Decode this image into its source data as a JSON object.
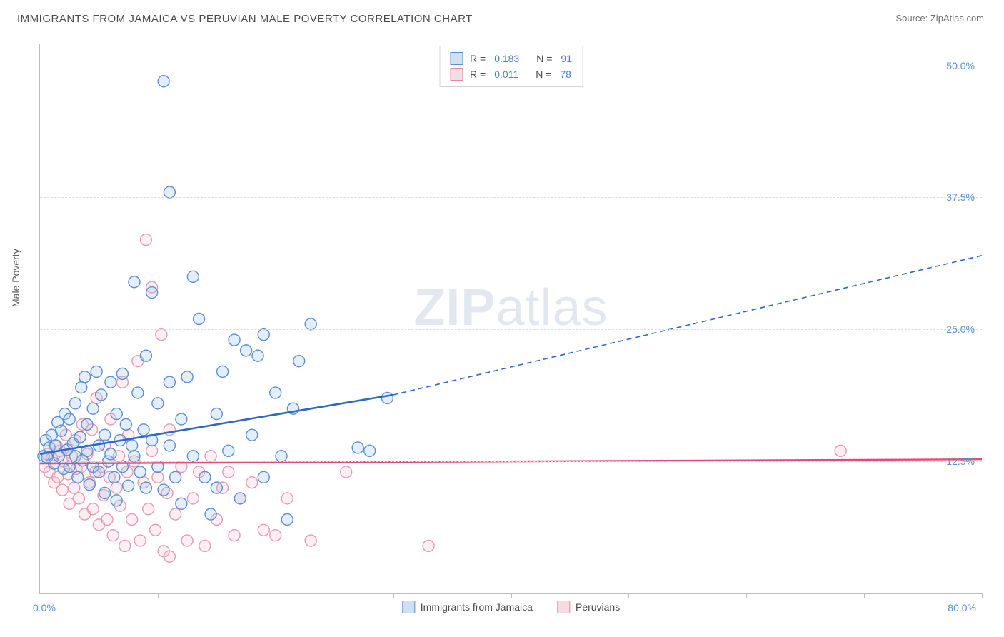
{
  "title": "IMMIGRANTS FROM JAMAICA VS PERUVIAN MALE POVERTY CORRELATION CHART",
  "source": "Source: ZipAtlas.com",
  "ylabel": "Male Poverty",
  "watermark": {
    "bold": "ZIP",
    "rest": "atlas"
  },
  "chart": {
    "type": "scatter",
    "background_color": "#ffffff",
    "grid_color": "#dcdcdc",
    "axis_color": "#bdbdbd",
    "xlim": [
      0,
      80
    ],
    "ylim": [
      0,
      52
    ],
    "xtick_positions": [
      0,
      10,
      20,
      30,
      40,
      50,
      60,
      70,
      80
    ],
    "ytick_labels": [
      {
        "value": 12.5,
        "label": "12.5%"
      },
      {
        "value": 25.0,
        "label": "25.0%"
      },
      {
        "value": 37.5,
        "label": "37.5%"
      },
      {
        "value": 50.0,
        "label": "50.0%"
      }
    ],
    "xaxis_left_label": "0.0%",
    "xaxis_right_label": "80.0%",
    "ytick_color": "#5a8fd6",
    "xtick_color": "#5a8fd6",
    "marker_radius": 8,
    "marker_stroke_width": 1.4,
    "marker_fill_opacity": 0.28
  },
  "series": [
    {
      "id": "jamaica",
      "label": "Immigrants from Jamaica",
      "color_stroke": "#5a8fd6",
      "color_fill": "#9dc1ea",
      "swatch_fill": "#cfe0f4",
      "swatch_border": "#5a8fd6",
      "R": "0.183",
      "N": "91",
      "trend": {
        "solid": {
          "x1": 0,
          "y1": 13.2,
          "x2": 30,
          "y2": 18.8
        },
        "dashed": {
          "x1": 30,
          "y1": 18.8,
          "x2": 80,
          "y2": 32.0
        },
        "line_color": "#2f67c5",
        "line_width_solid": 2.6,
        "line_width_dashed": 1.6,
        "dash": "7 5"
      },
      "points": [
        [
          0.3,
          13.0
        ],
        [
          0.5,
          14.5
        ],
        [
          0.6,
          12.9
        ],
        [
          0.8,
          13.8
        ],
        [
          1.0,
          15.0
        ],
        [
          1.2,
          12.3
        ],
        [
          1.3,
          14.0
        ],
        [
          1.5,
          16.2
        ],
        [
          1.6,
          13.0
        ],
        [
          1.8,
          15.4
        ],
        [
          2.0,
          11.8
        ],
        [
          2.1,
          17.0
        ],
        [
          2.3,
          13.6
        ],
        [
          2.5,
          12.0
        ],
        [
          2.5,
          16.5
        ],
        [
          2.8,
          14.2
        ],
        [
          3.0,
          13.0
        ],
        [
          3.0,
          18.0
        ],
        [
          3.2,
          11.0
        ],
        [
          3.4,
          14.8
        ],
        [
          3.5,
          19.5
        ],
        [
          3.6,
          12.6
        ],
        [
          3.8,
          20.5
        ],
        [
          4.0,
          13.5
        ],
        [
          4.0,
          16.0
        ],
        [
          4.2,
          10.3
        ],
        [
          4.5,
          17.5
        ],
        [
          4.5,
          12.0
        ],
        [
          4.8,
          21.0
        ],
        [
          5.0,
          14.0
        ],
        [
          5.0,
          11.5
        ],
        [
          5.2,
          18.8
        ],
        [
          5.5,
          9.5
        ],
        [
          5.5,
          15.0
        ],
        [
          5.8,
          12.5
        ],
        [
          6.0,
          20.0
        ],
        [
          6.0,
          13.2
        ],
        [
          6.3,
          11.0
        ],
        [
          6.5,
          17.0
        ],
        [
          6.5,
          8.8
        ],
        [
          6.8,
          14.5
        ],
        [
          7.0,
          20.8
        ],
        [
          7.0,
          12.0
        ],
        [
          7.3,
          16.0
        ],
        [
          7.5,
          10.2
        ],
        [
          7.8,
          14.0
        ],
        [
          8.0,
          29.5
        ],
        [
          8.0,
          13.0
        ],
        [
          8.3,
          19.0
        ],
        [
          8.5,
          11.5
        ],
        [
          8.8,
          15.5
        ],
        [
          9.0,
          22.5
        ],
        [
          9.0,
          10.0
        ],
        [
          9.5,
          14.5
        ],
        [
          9.5,
          28.5
        ],
        [
          10.0,
          12.0
        ],
        [
          10.0,
          18.0
        ],
        [
          10.5,
          9.8
        ],
        [
          10.5,
          48.5
        ],
        [
          11.0,
          14.0
        ],
        [
          11.0,
          20.0
        ],
        [
          11.0,
          38.0
        ],
        [
          11.5,
          11.0
        ],
        [
          12.0,
          16.5
        ],
        [
          12.0,
          8.5
        ],
        [
          12.5,
          20.5
        ],
        [
          13.0,
          13.0
        ],
        [
          13.0,
          30.0
        ],
        [
          13.5,
          26.0
        ],
        [
          14.0,
          11.0
        ],
        [
          14.5,
          7.5
        ],
        [
          15.0,
          17.0
        ],
        [
          15.0,
          10.0
        ],
        [
          15.5,
          21.0
        ],
        [
          16.0,
          13.5
        ],
        [
          16.5,
          24.0
        ],
        [
          17.0,
          9.0
        ],
        [
          17.5,
          23.0
        ],
        [
          18.0,
          15.0
        ],
        [
          18.5,
          22.5
        ],
        [
          19.0,
          11.0
        ],
        [
          19.0,
          24.5
        ],
        [
          20.0,
          19.0
        ],
        [
          20.5,
          13.0
        ],
        [
          21.0,
          7.0
        ],
        [
          21.5,
          17.5
        ],
        [
          22.0,
          22.0
        ],
        [
          23.0,
          25.5
        ],
        [
          27.0,
          13.8
        ],
        [
          28.0,
          13.5
        ],
        [
          29.5,
          18.5
        ]
      ]
    },
    {
      "id": "peruvians",
      "label": "Peruvians",
      "color_stroke": "#e69ab0",
      "color_fill": "#f4c3cf",
      "swatch_fill": "#f7dbe2",
      "swatch_border": "#e48aa1",
      "R": "0.011",
      "N": "78",
      "trend": {
        "solid": {
          "x1": 0,
          "y1": 12.3,
          "x2": 80,
          "y2": 12.7
        },
        "dashed": null,
        "line_color": "#e14b74",
        "line_width_solid": 2.4
      },
      "points": [
        [
          0.4,
          12.0
        ],
        [
          0.6,
          13.2
        ],
        [
          0.8,
          11.5
        ],
        [
          1.0,
          12.8
        ],
        [
          1.2,
          10.5
        ],
        [
          1.4,
          14.0
        ],
        [
          1.5,
          11.0
        ],
        [
          1.7,
          13.5
        ],
        [
          1.9,
          9.8
        ],
        [
          2.0,
          12.5
        ],
        [
          2.2,
          15.0
        ],
        [
          2.4,
          11.3
        ],
        [
          2.5,
          8.5
        ],
        [
          2.7,
          13.0
        ],
        [
          2.9,
          10.0
        ],
        [
          3.0,
          14.5
        ],
        [
          3.1,
          11.8
        ],
        [
          3.3,
          9.0
        ],
        [
          3.5,
          12.0
        ],
        [
          3.6,
          16.0
        ],
        [
          3.8,
          7.5
        ],
        [
          4.0,
          13.2
        ],
        [
          4.2,
          10.5
        ],
        [
          4.4,
          15.5
        ],
        [
          4.5,
          8.0
        ],
        [
          4.7,
          11.5
        ],
        [
          4.8,
          18.5
        ],
        [
          5.0,
          6.5
        ],
        [
          5.2,
          12.0
        ],
        [
          5.4,
          9.3
        ],
        [
          5.5,
          14.0
        ],
        [
          5.7,
          7.0
        ],
        [
          5.9,
          11.0
        ],
        [
          6.0,
          16.5
        ],
        [
          6.2,
          5.5
        ],
        [
          6.5,
          10.0
        ],
        [
          6.7,
          13.0
        ],
        [
          6.8,
          8.3
        ],
        [
          7.0,
          20.0
        ],
        [
          7.2,
          4.5
        ],
        [
          7.4,
          11.5
        ],
        [
          7.5,
          15.0
        ],
        [
          7.8,
          7.0
        ],
        [
          8.0,
          12.5
        ],
        [
          8.3,
          22.0
        ],
        [
          8.5,
          5.0
        ],
        [
          8.8,
          10.5
        ],
        [
          9.0,
          33.5
        ],
        [
          9.2,
          8.0
        ],
        [
          9.5,
          13.5
        ],
        [
          9.5,
          29.0
        ],
        [
          9.8,
          6.0
        ],
        [
          10.0,
          11.0
        ],
        [
          10.3,
          24.5
        ],
        [
          10.5,
          4.0
        ],
        [
          10.8,
          9.5
        ],
        [
          11.0,
          15.5
        ],
        [
          11.0,
          3.5
        ],
        [
          11.5,
          7.5
        ],
        [
          12.0,
          12.0
        ],
        [
          12.5,
          5.0
        ],
        [
          13.0,
          9.0
        ],
        [
          13.5,
          11.5
        ],
        [
          14.0,
          4.5
        ],
        [
          14.5,
          13.0
        ],
        [
          15.0,
          7.0
        ],
        [
          15.5,
          10.0
        ],
        [
          16.0,
          11.5
        ],
        [
          16.5,
          5.5
        ],
        [
          17.0,
          9.0
        ],
        [
          18.0,
          10.5
        ],
        [
          19.0,
          6.0
        ],
        [
          20.0,
          5.5
        ],
        [
          21.0,
          9.0
        ],
        [
          23.0,
          5.0
        ],
        [
          26.0,
          11.5
        ],
        [
          33.0,
          4.5
        ],
        [
          68.0,
          13.5
        ]
      ]
    }
  ]
}
